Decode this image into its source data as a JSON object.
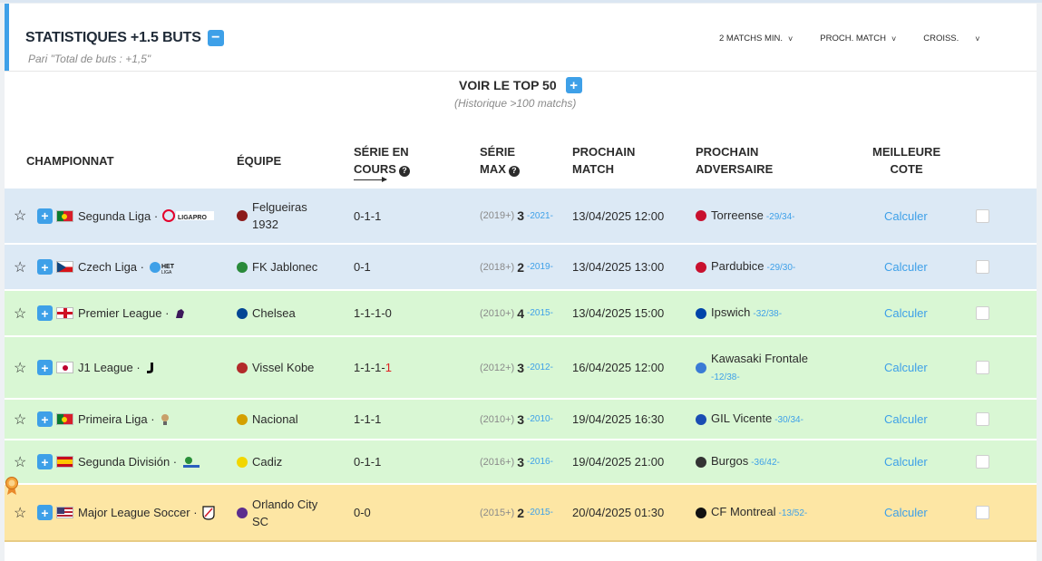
{
  "header": {
    "title": "STATISTIQUES +1.5 BUTS",
    "subtitle": "Pari \"Total de buts : +1,5\"",
    "filters": [
      {
        "label": "2 MATCHS MIN."
      },
      {
        "label": "PROCH. MATCH"
      },
      {
        "label": "CROISS."
      }
    ]
  },
  "top50": {
    "label": "VOIR LE TOP 50",
    "note": "(Historique >100 matchs)"
  },
  "columns": {
    "championnat": "CHAMPIONNAT",
    "equipe": "ÉQUIPE",
    "serie_en_cours_1": "SÉRIE EN",
    "serie_en_cours_2": "COURS",
    "serie_max_1": "SÉRIE",
    "serie_max_2": "MAX",
    "prochain_match_1": "PROCHAIN",
    "prochain_match_2": "MATCH",
    "prochain_adv_1": "PROCHAIN",
    "prochain_adv_2": "ADVERSAIRE",
    "meilleure_cote_1": "MEILLEURE",
    "meilleure_cote_2": "COTE"
  },
  "rows": [
    {
      "league": "Segunda Liga",
      "league_logo_text": "LIGAPRO",
      "team": "Felgueiras",
      "team_line2": "1932",
      "serie": "0-1-1",
      "serie_red": "",
      "max_since": "(2019+)",
      "max_value": "3",
      "max_year": "-2021-",
      "next_match": "13/04/2025 12:00",
      "opponent": "Torreense",
      "opp_rank": "-29/34-",
      "opp_rank_line2": "",
      "calc": "Calculer",
      "color": "blue"
    },
    {
      "league": "Czech Liga",
      "league_logo_text": "HET LIGA",
      "team": "FK Jablonec",
      "team_line2": "",
      "serie": "0-1",
      "serie_red": "",
      "max_since": "(2018+)",
      "max_value": "2",
      "max_year": "-2019-",
      "next_match": "13/04/2025 13:00",
      "opponent": "Pardubice",
      "opp_rank": "-29/30-",
      "opp_rank_line2": "",
      "calc": "Calculer",
      "color": "blue"
    },
    {
      "league": "Premier League",
      "league_logo_text": "",
      "team": "Chelsea",
      "team_line2": "",
      "serie": "1-1-1-0",
      "serie_red": "",
      "max_since": "(2010+)",
      "max_value": "4",
      "max_year": "-2015-",
      "next_match": "13/04/2025 15:00",
      "opponent": "Ipswich",
      "opp_rank": "-32/38-",
      "opp_rank_line2": "",
      "calc": "Calculer",
      "color": "green"
    },
    {
      "league": "J1 League",
      "league_logo_text": "",
      "team": "Vissel Kobe",
      "team_line2": "",
      "serie": "1-1-1-",
      "serie_red": "1",
      "max_since": "(2012+)",
      "max_value": "3",
      "max_year": "-2012-",
      "next_match": "16/04/2025 12:00",
      "opponent": "Kawasaki Frontale",
      "opp_rank": "",
      "opp_rank_line2": "-12/38-",
      "calc": "Calculer",
      "color": "green"
    },
    {
      "league": "Primeira Liga",
      "league_logo_text": "",
      "team": "Nacional",
      "team_line2": "",
      "serie": "1-1-1",
      "serie_red": "",
      "max_since": "(2010+)",
      "max_value": "3",
      "max_year": "-2010-",
      "next_match": "19/04/2025 16:30",
      "opponent": "GIL Vicente",
      "opp_rank": "-30/34-",
      "opp_rank_line2": "",
      "calc": "Calculer",
      "color": "green"
    },
    {
      "league": "Segunda División",
      "league_logo_text": "",
      "team": "Cadiz",
      "team_line2": "",
      "serie": "0-1-1",
      "serie_red": "",
      "max_since": "(2016+)",
      "max_value": "3",
      "max_year": "-2016-",
      "next_match": "19/04/2025 21:00",
      "opponent": "Burgos",
      "opp_rank": "-36/42-",
      "opp_rank_line2": "",
      "calc": "Calculer",
      "color": "green"
    },
    {
      "league": "Major League Soccer",
      "league_logo_text": "",
      "team": "Orlando City",
      "team_line2": "SC",
      "serie": "0-0",
      "serie_red": "",
      "max_since": "(2015+)",
      "max_value": "2",
      "max_year": "-2015-",
      "next_match": "20/04/2025 01:30",
      "opponent": "CF Montreal",
      "opp_rank": "-13/52-",
      "opp_rank_line2": "",
      "calc": "Calculer",
      "color": "gold"
    }
  ],
  "colors": {
    "accent": "#3ea0e8",
    "row_blue": "#dce9f5",
    "row_green": "#d9f7d4",
    "row_gold": "#fde6a4",
    "streak_red": "#e02020"
  },
  "icons": [
    "star-icon",
    "plus-icon",
    "minus-icon",
    "chevron-down-icon",
    "question-icon",
    "medal-icon",
    "arrow-right-icon"
  ]
}
